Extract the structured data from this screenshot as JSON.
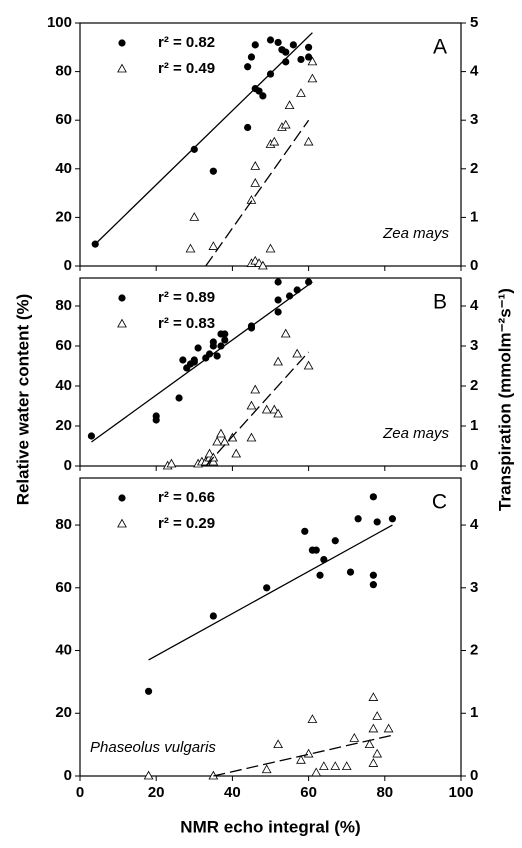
{
  "chart_data": [
    {
      "type": "scatter",
      "panel_label": "A",
      "annotation": "Zea mays",
      "legend": "upper left",
      "xlim": [
        0,
        100
      ],
      "ylim": [
        0,
        100
      ],
      "yticks": [
        0,
        20,
        40,
        60,
        80,
        100
      ],
      "y2lim": [
        0,
        5
      ],
      "y2ticks": [
        0,
        1,
        2,
        3,
        4,
        5
      ],
      "series": [
        {
          "name": "r² = 0.82",
          "marker": "circle",
          "color": "#000000",
          "x": [
            4,
            30,
            35,
            44,
            44,
            45,
            46,
            46,
            47,
            48,
            50,
            50,
            52,
            53,
            54,
            54,
            56,
            58,
            60,
            60
          ],
          "values": [
            9,
            48,
            39,
            57,
            82,
            86,
            73,
            91,
            72,
            70,
            79,
            93,
            92,
            89,
            88,
            84,
            91,
            85,
            90,
            86
          ]
        },
        {
          "name": "r² = 0.49",
          "marker": "triangle",
          "color": "#000000",
          "axis": "y2",
          "x": [
            29,
            30,
            35,
            45,
            45,
            46,
            46,
            46,
            47,
            48,
            50,
            50,
            51,
            53,
            54,
            55,
            58,
            60,
            61,
            61
          ],
          "values": [
            0.35,
            1.0,
            0.4,
            0.05,
            1.35,
            1.7,
            2.05,
            0.1,
            0.05,
            0.0,
            0.35,
            2.5,
            2.55,
            2.85,
            2.9,
            3.3,
            3.55,
            2.55,
            3.85,
            4.2
          ]
        }
      ],
      "fits": [
        {
          "dash": false,
          "x": [
            4,
            61
          ],
          "values": [
            9,
            96
          ]
        },
        {
          "dash": true,
          "axis": "y2",
          "x": [
            33,
            60
          ],
          "values": [
            0,
            3.0
          ]
        }
      ]
    },
    {
      "type": "scatter",
      "panel_label": "B",
      "annotation": "Zea mays",
      "legend": "upper left",
      "ylabel": "Relative water content (%)",
      "y2label": "Transpiration (mmolm⁻²s⁻¹)",
      "xlim": [
        0,
        100
      ],
      "ylim": [
        0,
        94
      ],
      "yticks": [
        0,
        20,
        40,
        60,
        80
      ],
      "y2lim": [
        0,
        4.7
      ],
      "y2ticks": [
        0,
        1,
        2,
        3,
        4
      ],
      "series": [
        {
          "name": "r² = 0.89",
          "marker": "circle",
          "color": "#000000",
          "x": [
            3,
            20,
            20,
            26,
            27,
            28,
            29,
            30,
            30,
            31,
            33,
            34,
            35,
            35,
            36,
            37,
            37,
            38,
            38,
            45,
            45,
            52,
            52,
            52,
            55,
            57,
            60
          ],
          "values": [
            15,
            23,
            25,
            34,
            53,
            49,
            51,
            52,
            53,
            59,
            54,
            56,
            62,
            60,
            55,
            60,
            66,
            66,
            63,
            69,
            70,
            92,
            83,
            77,
            85,
            88,
            92
          ]
        },
        {
          "name": "r² = 0.83",
          "marker": "triangle",
          "color": "#000000",
          "axis": "y2",
          "x": [
            23,
            24,
            31,
            32,
            33,
            34,
            34,
            35,
            35,
            36,
            37,
            38,
            40,
            41,
            45,
            45,
            46,
            49,
            51,
            52,
            52,
            54,
            57,
            60
          ],
          "values": [
            0.0,
            0.05,
            0.05,
            0.1,
            0.1,
            0.2,
            0.3,
            0.1,
            0.2,
            0.6,
            0.8,
            0.6,
            0.7,
            0.3,
            0.7,
            1.5,
            1.9,
            1.4,
            1.4,
            1.3,
            2.6,
            3.3,
            2.8,
            2.5
          ]
        }
      ],
      "fits": [
        {
          "dash": false,
          "x": [
            3,
            61
          ],
          "values": [
            12,
            92
          ]
        },
        {
          "dash": true,
          "axis": "y2",
          "x": [
            33,
            60
          ],
          "values": [
            0,
            2.85
          ]
        }
      ]
    },
    {
      "type": "scatter",
      "panel_label": "C",
      "annotation": "Phaseolus vulgaris",
      "legend": "upper left",
      "xlabel": "NMR echo integral (%)",
      "xlim": [
        0,
        100
      ],
      "xticks": [
        0,
        20,
        40,
        60,
        80,
        100
      ],
      "ylim": [
        0,
        95
      ],
      "yticks": [
        0,
        20,
        40,
        60,
        80
      ],
      "y2lim": [
        0,
        4.75
      ],
      "y2ticks": [
        0,
        1,
        2,
        3,
        4
      ],
      "series": [
        {
          "name": "r² = 0.66",
          "marker": "circle",
          "color": "#000000",
          "x": [
            18,
            35,
            49,
            59,
            61,
            62,
            63,
            64,
            67,
            71,
            73,
            77,
            77,
            77,
            78,
            82
          ],
          "values": [
            27,
            51,
            60,
            78,
            72,
            72,
            64,
            69,
            75,
            65,
            82,
            89,
            64,
            61,
            81,
            82
          ]
        },
        {
          "name": "r² = 0.29",
          "marker": "triangle",
          "color": "#000000",
          "axis": "y2",
          "x": [
            18,
            35,
            49,
            52,
            58,
            60,
            61,
            62,
            64,
            67,
            70,
            72,
            76,
            77,
            77,
            77,
            78,
            78,
            81
          ],
          "values": [
            0,
            0,
            0.1,
            0.5,
            0.25,
            0.35,
            0.9,
            0.05,
            0.15,
            0.15,
            0.15,
            0.6,
            0.5,
            1.25,
            0.75,
            0.2,
            0.35,
            0.95,
            0.75
          ]
        }
      ],
      "fits": [
        {
          "dash": false,
          "x": [
            18,
            82
          ],
          "values": [
            37,
            80
          ]
        },
        {
          "dash": true,
          "axis": "y2",
          "x": [
            35,
            82
          ],
          "values": [
            0,
            0.65
          ]
        }
      ]
    }
  ]
}
